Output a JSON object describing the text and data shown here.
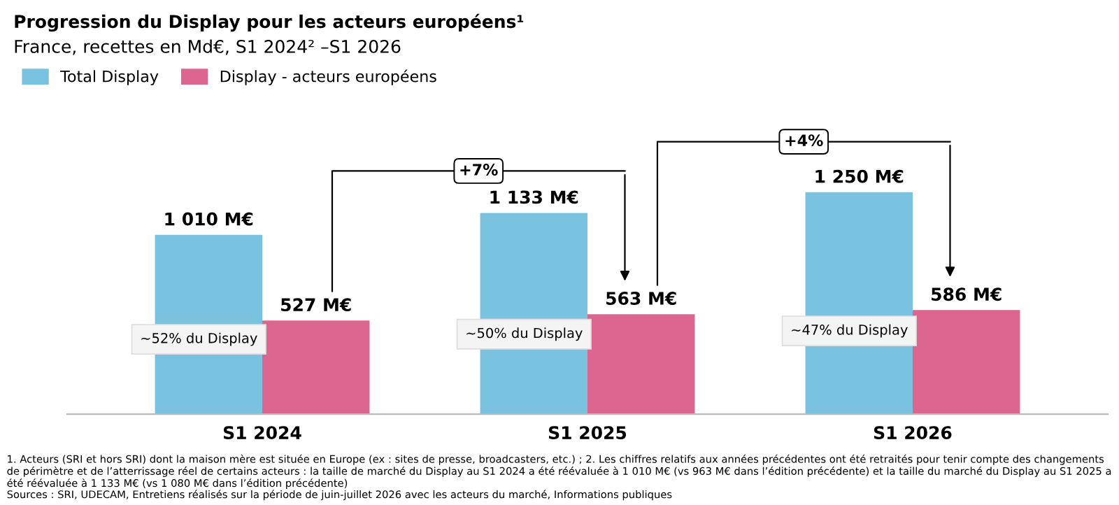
{
  "chart_data": {
    "type": "bar",
    "title": "Progression du Display pour les acteurs européens¹",
    "subtitle": "France, recettes en Md€, S1 2024² –S1 2026",
    "categories": [
      "S1 2024",
      "S1 2025",
      "S1 2026"
    ],
    "series": [
      {
        "name": "Total Display",
        "color": "#7ac3e0",
        "values": [
          1010,
          1133,
          1250
        ],
        "value_labels": [
          "1 010 M€",
          "1 133 M€",
          "1 250 M€"
        ]
      },
      {
        "name": "Display - acteurs européens",
        "color": "#dc6690",
        "values": [
          527,
          563,
          586
        ],
        "value_labels": [
          "527 M€",
          "563 M€",
          "586 M€"
        ]
      }
    ],
    "annotations": [
      {
        "text": "~52% du Display",
        "x": "S1 2024",
        "y": 527
      },
      {
        "text": "~50% du Display",
        "x": "S1 2025",
        "y": 563
      },
      {
        "text": "~47% du Display",
        "x": "S1 2026",
        "y": 586
      },
      "+7%",
      "+4%",
      "1. Acteurs (SRI et hors SRI) dont la maison mère est située en Europe (ex : sites de presse, broadcasters, etc.) ; 2. Les chiffres relatifs aux années précédentes ont été retraités pour tenir compte des changements de périmètre et de l’atterrissage réel de certains acteurs : la taille de marché du Display au S1 2024 a été réévaluée à 1 010 M€ (vs 963 M€ dans l’édition précédente) et la taille du marché du Display au S1 2025 a été réévaluée à 1 133 M€ (vs 1 080 M€ dans l’édition précédente)",
      "Sources : SRI, UDECAM, Entretiens réalisés sur la période de juin-juillet 2026 avec les acteurs du marché, Informations publiques"
    ],
    "legend": "top left",
    "grid": false,
    "tick_labels": "x"
  }
}
